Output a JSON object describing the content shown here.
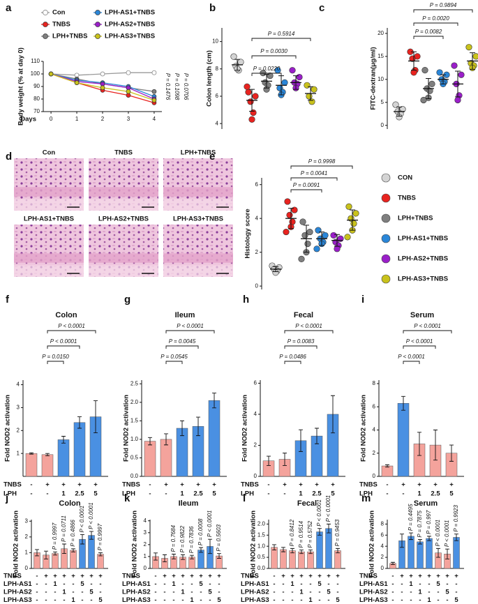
{
  "chart_data": [
    {
      "panel": "a",
      "type": "line",
      "ylabel": "Body weight (% at day 0)",
      "xlabel": "Days",
      "x": [
        0,
        1,
        2,
        3,
        4
      ],
      "xlim": [
        -0.3,
        4.3
      ],
      "xticks": [
        0,
        1,
        2,
        3,
        4
      ],
      "ylim": [
        70,
        110
      ],
      "yticks": [
        70,
        80,
        90,
        100,
        110
      ],
      "series": [
        {
          "name": "Con",
          "color": "#9a9a9a",
          "values": [
            100,
            99,
            100,
            101,
            101
          ]
        },
        {
          "name": "TNBS",
          "color": "#e8231f",
          "values": [
            100,
            93,
            87,
            83,
            77
          ]
        },
        {
          "name": "LPH+TNBS",
          "color": "#7f7f7f",
          "values": [
            100,
            96,
            92,
            89,
            86
          ]
        },
        {
          "name": "LPH-AS1+TNBS",
          "color": "#2a86d8",
          "values": [
            100,
            95,
            93,
            90,
            82
          ]
        },
        {
          "name": "LPH-AS2+TNBS",
          "color": "#9a1fc9",
          "values": [
            100,
            94,
            92,
            89,
            80
          ]
        },
        {
          "name": "LPH-AS3+TNBS",
          "color": "#c9c21c",
          "values": [
            100,
            93,
            89,
            86,
            79
          ]
        }
      ],
      "annotations": [
        "P = 0.1476",
        "P = 0.1098",
        "P = 0.0706"
      ]
    },
    {
      "panel": "b",
      "type": "dot",
      "ylabel": "Colon length (cm)",
      "ylim": [
        3.6,
        11
      ],
      "yticks": [
        4,
        6,
        8,
        10
      ],
      "colors": [
        "#d4d4d4",
        "#e8231f",
        "#7f7f7f",
        "#2a86d8",
        "#9a1fc9",
        "#c9c21c"
      ],
      "values": [
        8.3,
        5.7,
        7.1,
        6.8,
        7.0,
        6.2
      ],
      "errors": [
        0.4,
        0.8,
        0.5,
        0.7,
        0.5,
        0.5
      ],
      "points": [
        [
          8.9,
          8.5,
          8.2,
          7.9,
          8.0
        ],
        [
          6.3,
          6.0,
          5.6,
          4.8,
          4.3,
          6.7
        ],
        [
          7.7,
          7.5,
          7.0,
          6.8,
          6.5
        ],
        [
          7.9,
          7.0,
          6.6,
          6.3,
          6.1
        ],
        [
          7.9,
          7.4,
          7.0,
          6.9,
          6.6
        ],
        [
          6.8,
          6.5,
          6.0,
          5.6
        ]
      ],
      "comparisons": [
        {
          "pair": [
            1,
            3
          ],
          "label": "P = 0.0220"
        },
        {
          "pair": [
            1,
            4
          ],
          "label": "P = 0.0030"
        },
        {
          "pair": [
            1,
            5
          ],
          "label": "P = 0.5914"
        }
      ]
    },
    {
      "panel": "c",
      "type": "dot",
      "ylabel": "FITC-dextran(μg/ml)",
      "ylim": [
        -0.8,
        21.2
      ],
      "yticks": [
        0,
        5,
        10,
        15,
        20
      ],
      "colors": [
        "#d4d4d4",
        "#e8231f",
        "#7f7f7f",
        "#2a86d8",
        "#9a1fc9",
        "#c9c21c"
      ],
      "values": [
        3,
        14,
        8,
        10,
        9,
        14
      ],
      "errors": [
        1,
        2,
        2.2,
        1,
        2.8,
        1.8
      ],
      "points": [
        [
          4.5,
          3.5,
          3.0,
          2.5,
          1.8
        ],
        [
          16,
          15,
          14.5,
          12,
          11.5
        ],
        [
          12,
          9,
          8,
          7.5,
          6,
          5.5
        ],
        [
          11.5,
          11,
          10,
          9.5,
          9
        ],
        [
          13,
          11,
          9,
          6.5,
          5.5
        ],
        [
          17,
          15,
          13.5,
          13,
          12.5
        ]
      ],
      "comparisons": [
        {
          "pair": [
            1,
            3
          ],
          "label": "P = 0.0082"
        },
        {
          "pair": [
            1,
            4
          ],
          "label": "P = 0.0020"
        },
        {
          "pair": [
            1,
            5
          ],
          "label": "P = 0.9894"
        }
      ]
    },
    {
      "panel": "d",
      "type": "image",
      "labels": [
        "Con",
        "TNBS",
        "LPH+TNBS",
        "LPH-AS1+TNBS",
        "LPH-AS2+TNBS",
        "LPH-AS3+TNBS"
      ]
    },
    {
      "panel": "e",
      "type": "dot",
      "ylabel": "Histology score",
      "ylim": [
        -0.2,
        6.4
      ],
      "yticks": [
        0,
        2,
        4,
        6
      ],
      "categories": [
        "CON",
        "TNBS",
        "LPH+TNBS",
        "LPH-AS1+TNBS",
        "LPH-AS2+TNBS",
        "LPH-AS3+TNBS"
      ],
      "colors": [
        "#d4d4d4",
        "#e8231f",
        "#7f7f7f",
        "#2a86d8",
        "#9a1fc9",
        "#c9c21c"
      ],
      "values": [
        1.0,
        4.0,
        2.8,
        2.8,
        2.7,
        3.9
      ],
      "errors": [
        0.15,
        0.6,
        0.8,
        0.4,
        0.35,
        0.6
      ],
      "points": [
        [
          1.2,
          1.1,
          1.0,
          0.9,
          0.8
        ],
        [
          5,
          4.5,
          4.2,
          3.8,
          3.5,
          3.2
        ],
        [
          3.8,
          3.2,
          3.0,
          2.5,
          2.0,
          1.6
        ],
        [
          3.3,
          3.0,
          2.8,
          2.6,
          2.5,
          2.2
        ],
        [
          3.0,
          2.8,
          2.6,
          2.4,
          2.2
        ],
        [
          4.7,
          4.3,
          4.0,
          3.7,
          3.3,
          2.9
        ]
      ],
      "comparisons": [
        {
          "pair": [
            1,
            3
          ],
          "label": "P = 0.0091"
        },
        {
          "pair": [
            1,
            4
          ],
          "label": "P = 0.0041"
        },
        {
          "pair": [
            1,
            5
          ],
          "label": "P = 0.9998"
        }
      ]
    },
    {
      "panel": "f",
      "type": "bar",
      "title": "Colon",
      "ylabel": "Fold NOD2 activation",
      "ylim": [
        0,
        4.2
      ],
      "yticks": [
        1,
        2,
        3,
        4
      ],
      "values": [
        1.0,
        0.95,
        1.6,
        2.35,
        2.6
      ],
      "errors": [
        0.03,
        0.05,
        0.15,
        0.25,
        0.7
      ],
      "colors": [
        "#f4a39c",
        "#f4a39c",
        "#4a90e2",
        "#4a90e2",
        "#4a90e2"
      ],
      "rows": [
        {
          "name": "TNBS",
          "labels": [
            "-",
            "+",
            "+",
            "+",
            "+"
          ]
        },
        {
          "name": "LPH",
          "labels": [
            "-",
            "-",
            "1",
            "2.5",
            "5"
          ]
        }
      ],
      "comparisons": [
        {
          "pair": [
            1,
            2
          ],
          "label": "P = 0.0150"
        },
        {
          "pair": [
            1,
            3
          ],
          "label": "P < 0.0001"
        },
        {
          "pair": [
            1,
            4
          ],
          "label": "P < 0.0001"
        }
      ]
    },
    {
      "panel": "g",
      "type": "bar",
      "title": "Ileum",
      "ylabel": "Fold NOD2 activation",
      "ylim": [
        0,
        2.6
      ],
      "yticks": [
        {
          "value": 0,
          "label": "0.0"
        },
        0.5,
        {
          "value": 1,
          "label": "1.0"
        },
        1.5,
        {
          "value": 2,
          "label": "2.0"
        },
        2.5
      ],
      "values": [
        0.95,
        1.0,
        1.3,
        1.35,
        2.05
      ],
      "errors": [
        0.1,
        0.15,
        0.2,
        0.25,
        0.2
      ],
      "colors": [
        "#f4a39c",
        "#f4a39c",
        "#4a90e2",
        "#4a90e2",
        "#4a90e2"
      ],
      "rows": [
        {
          "name": "TNBS",
          "labels": [
            "-",
            "+",
            "+",
            "+",
            "+"
          ]
        },
        {
          "name": "LPH",
          "labels": [
            "-",
            "-",
            "1",
            "2.5",
            "5"
          ]
        }
      ],
      "comparisons": [
        {
          "pair": [
            1,
            2
          ],
          "label": "P = 0.0545"
        },
        {
          "pair": [
            1,
            3
          ],
          "label": "P = 0.0045"
        },
        {
          "pair": [
            1,
            4
          ],
          "label": "P < 0.0001"
        }
      ]
    },
    {
      "panel": "h",
      "type": "bar",
      "title": "Fecal",
      "ylabel": "Fold NOD2 activation",
      "ylim": [
        0,
        6.2
      ],
      "yticks": [
        0,
        2,
        4,
        6
      ],
      "values": [
        1.0,
        1.1,
        2.3,
        2.6,
        4.0
      ],
      "errors": [
        0.3,
        0.4,
        0.7,
        0.5,
        1.2
      ],
      "colors": [
        "#f4a39c",
        "#f4a39c",
        "#4a90e2",
        "#4a90e2",
        "#4a90e2"
      ],
      "rows": [
        {
          "name": "TNBS",
          "labels": [
            "-",
            "+",
            "+",
            "+",
            "+"
          ]
        },
        {
          "name": "LPH",
          "labels": [
            "-",
            "-",
            "1",
            "2.5",
            "5"
          ]
        }
      ],
      "comparisons": [
        {
          "pair": [
            1,
            2
          ],
          "label": "P = 0.0486"
        },
        {
          "pair": [
            1,
            3
          ],
          "label": "P = 0.0083"
        },
        {
          "pair": [
            1,
            4
          ],
          "label": "P < 0.0001"
        }
      ]
    },
    {
      "panel": "i",
      "type": "bar",
      "title": "Serum",
      "ylabel": "Fold NOD2 activation",
      "ylim": [
        0,
        8.3
      ],
      "yticks": [
        0,
        2,
        4,
        6,
        8
      ],
      "values": [
        0.9,
        6.3,
        2.8,
        2.7,
        2.0
      ],
      "errors": [
        0.1,
        0.6,
        1.0,
        1.3,
        0.7
      ],
      "colors": [
        "#f4a39c",
        "#4a90e2",
        "#f4a39c",
        "#f4a39c",
        "#f4a39c"
      ],
      "rows": [
        {
          "name": "TNBS",
          "labels": [
            "-",
            "+",
            "+",
            "+",
            "+"
          ]
        },
        {
          "name": "LPH",
          "labels": [
            "-",
            "-",
            "1",
            "2.5",
            "5"
          ]
        }
      ],
      "comparisons": [
        {
          "pair": [
            1,
            2
          ],
          "label": "P < 0.0001"
        },
        {
          "pair": [
            1,
            3
          ],
          "label": "P < 0.0001"
        },
        {
          "pair": [
            1,
            4
          ],
          "label": "P < 0.0001"
        }
      ]
    },
    {
      "panel": "j",
      "type": "bar",
      "title": "Colon",
      "ylabel": "Fold NOD2 activation",
      "ylim": [
        0,
        3.1
      ],
      "yticks": [
        0,
        1,
        2,
        3
      ],
      "values": [
        1.0,
        0.85,
        0.95,
        1.25,
        1.15,
        1.85,
        2.1,
        0.9
      ],
      "errors": [
        0.2,
        0.25,
        0.1,
        0.3,
        0.1,
        0.3,
        0.25,
        0.1
      ],
      "colors": [
        "#f4a39c",
        "#f4a39c",
        "#f4a39c",
        "#f4a39c",
        "#f4a39c",
        "#4a90e2",
        "#4a90e2",
        "#f4a39c"
      ],
      "p_labels": [
        null,
        null,
        "P = 0.9997",
        "P = 0.0711",
        "P = 0.4866",
        "P < 0.0001",
        "P < 0.0001",
        "P = 0.9997"
      ],
      "rows": [
        {
          "name": "TNBS",
          "labels": [
            "-",
            "+",
            "+",
            "+",
            "+",
            "+",
            "+",
            "+"
          ]
        },
        {
          "name": "LPH-AS1",
          "labels": [
            "-",
            "-",
            "1",
            "-",
            "-",
            "5",
            "-",
            "-"
          ]
        },
        {
          "name": "LPH-AS2",
          "labels": [
            "-",
            "-",
            "-",
            "1",
            "-",
            "-",
            "5",
            "-"
          ]
        },
        {
          "name": "LPH-AS3",
          "labels": [
            "-",
            "-",
            "-",
            "-",
            "1",
            "-",
            "-",
            "5"
          ]
        }
      ]
    },
    {
      "panel": "k",
      "type": "bar",
      "title": "Ileum",
      "ylabel": "Fold NOD2 activation",
      "ylim": [
        0,
        4.1
      ],
      "yticks": [
        0,
        1,
        2,
        3,
        4
      ],
      "values": [
        1.0,
        0.85,
        1.0,
        0.95,
        0.95,
        1.55,
        1.85,
        1.05
      ],
      "errors": [
        0.3,
        0.3,
        0.2,
        0.2,
        0.15,
        0.2,
        0.6,
        0.2
      ],
      "colors": [
        "#f4a39c",
        "#f4a39c",
        "#f4a39c",
        "#f4a39c",
        "#f4a39c",
        "#4a90e2",
        "#4a90e2",
        "#f4a39c"
      ],
      "p_labels": [
        null,
        null,
        "P = 0.7684",
        "P = 0.9822",
        "P = 0.7836",
        "P = 0.0008",
        "P < 0.0001",
        "P = 0.5603"
      ],
      "rows": [
        {
          "name": "TNBS",
          "labels": [
            "-",
            "+",
            "+",
            "+",
            "+",
            "+",
            "+",
            "+"
          ]
        },
        {
          "name": "LPH-AS1",
          "labels": [
            "-",
            "-",
            "1",
            "-",
            "-",
            "5",
            "-",
            "-"
          ]
        },
        {
          "name": "LPH-AS2",
          "labels": [
            "-",
            "-",
            "-",
            "1",
            "-",
            "-",
            "5",
            "-"
          ]
        },
        {
          "name": "LPH-AS3",
          "labels": [
            "-",
            "-",
            "-",
            "-",
            "1",
            "-",
            "-",
            "5"
          ]
        }
      ]
    },
    {
      "panel": "l",
      "type": "bar",
      "title": "Fecal",
      "ylabel": "Fold NOD2 activation",
      "ylim": [
        0,
        2.2
      ],
      "yticks": [
        {
          "value": 0,
          "label": "0.0"
        },
        0.5,
        {
          "value": 1,
          "label": "1.0"
        },
        1.5,
        {
          "value": 2,
          "label": "2.0"
        }
      ],
      "values": [
        0.95,
        0.85,
        0.8,
        0.75,
        0.75,
        1.65,
        1.8,
        0.8
      ],
      "errors": [
        0.12,
        0.1,
        0.1,
        0.08,
        0.08,
        0.15,
        0.2,
        0.1
      ],
      "colors": [
        "#f4a39c",
        "#f4a39c",
        "#f4a39c",
        "#f4a39c",
        "#f4a39c",
        "#4a90e2",
        "#4a90e2",
        "#f4a39c"
      ],
      "p_labels": [
        null,
        null,
        "P = 0.8412",
        "P = 0.9514",
        "P = 0.5752",
        "P < 0.0001",
        "P < 0.0001",
        "P = 0.9453"
      ],
      "rows": [
        {
          "name": "TNBS",
          "labels": [
            "-",
            "+",
            "+",
            "+",
            "+",
            "+",
            "+",
            "+"
          ]
        },
        {
          "name": "LPH-AS1",
          "labels": [
            "-",
            "-",
            "1",
            "-",
            "-",
            "5",
            "-",
            "-"
          ]
        },
        {
          "name": "LPH-AS2",
          "labels": [
            "-",
            "-",
            "-",
            "1",
            "-",
            "-",
            "5",
            "-"
          ]
        },
        {
          "name": "LPH-AS3",
          "labels": [
            "-",
            "-",
            "-",
            "-",
            "1",
            "-",
            "-",
            "5"
          ]
        }
      ]
    },
    {
      "panel": "m",
      "type": "bar",
      "title": "Serum",
      "ylabel": "Fold NOD2 activation",
      "ylim": [
        0,
        8.8
      ],
      "yticks": [
        0,
        2,
        4,
        6,
        8
      ],
      "values": [
        0.9,
        5.0,
        5.8,
        4.8,
        5.4,
        2.8,
        2.6,
        5.6
      ],
      "errors": [
        0.2,
        1.2,
        0.6,
        0.4,
        0.4,
        0.8,
        0.9,
        0.6
      ],
      "colors": [
        "#f4a39c",
        "#4a90e2",
        "#4a90e2",
        "#4a90e2",
        "#4a90e2",
        "#f4a39c",
        "#f4a39c",
        "#4a90e2"
      ],
      "p_labels": [
        null,
        null,
        "P = 0.4495",
        "P = 0.7875",
        "P = 0.997",
        "P < 0.0001",
        "P < 0.0001",
        "P = 0.9923"
      ],
      "rows": [
        {
          "name": "TNBS",
          "labels": [
            "-",
            "+",
            "+",
            "+",
            "+",
            "+",
            "+",
            "+"
          ]
        },
        {
          "name": "LPH-AS1",
          "labels": [
            "-",
            "-",
            "1",
            "-",
            "-",
            "5",
            "-",
            "-"
          ]
        },
        {
          "name": "LPH-AS2",
          "labels": [
            "-",
            "-",
            "-",
            "1",
            "-",
            "-",
            "5",
            "-"
          ]
        },
        {
          "name": "LPH-AS3",
          "labels": [
            "-",
            "-",
            "-",
            "-",
            "1",
            "-",
            "-",
            "5"
          ]
        }
      ]
    }
  ]
}
